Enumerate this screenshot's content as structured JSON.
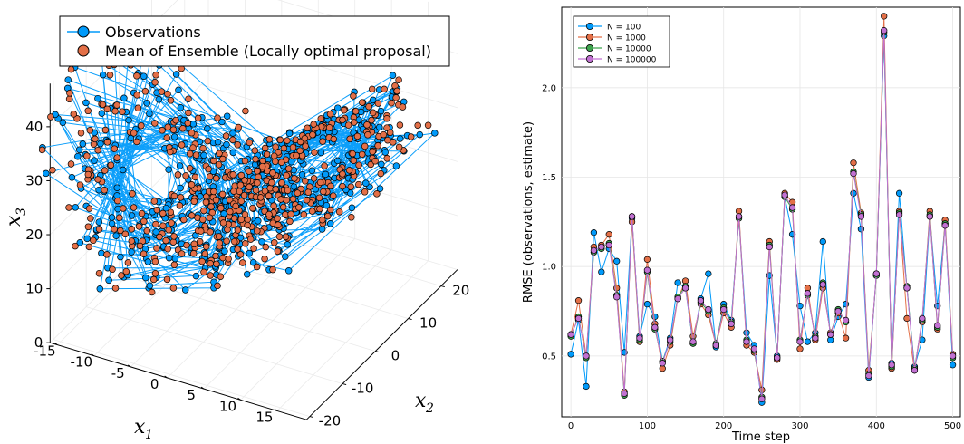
{
  "chart_data": [
    {
      "type": "scatter",
      "projection": "3d",
      "xlabel_main": "x",
      "xlabel_sub": "1",
      "ylabel_main": "x",
      "ylabel_sub": "2",
      "zlabel_main": "x",
      "zlabel_sub": "3",
      "x_ticks": [
        "-15",
        "-10",
        "-5",
        "0",
        "5",
        "10",
        "15"
      ],
      "y_ticks": [
        "20",
        "10",
        "0",
        "-10",
        "-20"
      ],
      "z_ticks": [
        "0",
        "10",
        "20",
        "30",
        "40"
      ],
      "xlim": [
        -17,
        19
      ],
      "ylim": [
        -24,
        27
      ],
      "zlim": [
        0,
        48
      ],
      "legend_position": "top-left",
      "series": [
        {
          "name": "Observations",
          "color": "#009AFA",
          "style": "line+markers"
        },
        {
          "name": "Mean of Ensemble (Locally optimal proposal)",
          "color": "#E36F47",
          "style": "markers"
        }
      ],
      "point_count_estimate": 500
    },
    {
      "type": "line",
      "xlabel": "Time step",
      "ylabel": "RMSE (observations, estimate)",
      "xlim": [
        -12,
        510
      ],
      "ylim": [
        0.16,
        2.45
      ],
      "x_ticks": [
        0,
        100,
        200,
        300,
        400,
        500
      ],
      "y_ticks": [
        0.5,
        1.0,
        1.5,
        2.0
      ],
      "y_tick_labels": [
        "0.5",
        "1.0",
        "1.5",
        "2.0"
      ],
      "grid": true,
      "legend_position": "top-left",
      "x": [
        0,
        10,
        20,
        30,
        40,
        50,
        60,
        70,
        80,
        90,
        100,
        110,
        120,
        130,
        140,
        150,
        160,
        170,
        180,
        190,
        200,
        210,
        220,
        230,
        240,
        250,
        260,
        270,
        280,
        290,
        300,
        310,
        320,
        330,
        340,
        350,
        360,
        370,
        380,
        390,
        400,
        410,
        420,
        430,
        440,
        450,
        460,
        470,
        480,
        490,
        500
      ],
      "series": [
        {
          "name": "N = 100",
          "color": "#009AFA",
          "values": [
            0.51,
            0.7,
            0.33,
            1.19,
            0.97,
            1.1,
            1.03,
            0.52,
            1.27,
            0.61,
            0.79,
            0.72,
            0.47,
            0.6,
            0.91,
            0.88,
            0.57,
            0.82,
            0.96,
            0.55,
            0.79,
            0.7,
            1.28,
            0.63,
            0.56,
            0.24,
            0.95,
            0.5,
            1.39,
            1.18,
            0.78,
            0.58,
            0.63,
            1.14,
            0.59,
            0.72,
            0.79,
            1.41,
            1.21,
            0.38,
            0.96,
            2.29,
            0.46,
            1.41,
            0.88,
            0.44,
            0.59,
            1.28,
            0.78,
            1.24,
            0.45
          ]
        },
        {
          "name": "N = 1000",
          "color": "#E36F47",
          "values": [
            0.62,
            0.81,
            0.5,
            1.11,
            1.12,
            1.18,
            0.88,
            0.3,
            1.25,
            0.58,
            1.04,
            0.68,
            0.43,
            0.56,
            0.82,
            0.92,
            0.61,
            0.79,
            0.73,
            0.56,
            0.74,
            0.66,
            1.31,
            0.56,
            0.52,
            0.31,
            1.14,
            0.48,
            1.41,
            1.36,
            0.54,
            0.88,
            0.59,
            0.88,
            0.63,
            0.74,
            0.6,
            1.58,
            1.3,
            0.42,
            0.95,
            2.4,
            0.43,
            1.31,
            0.71,
            0.42,
            0.69,
            1.31,
            0.65,
            1.26,
            0.51
          ]
        },
        {
          "name": "N = 10000",
          "color": "#3EA44E",
          "values": [
            0.61,
            0.72,
            0.49,
            1.08,
            1.1,
            1.13,
            0.84,
            0.28,
            1.28,
            0.59,
            0.97,
            0.65,
            0.47,
            0.58,
            0.83,
            0.89,
            0.57,
            0.8,
            0.75,
            0.57,
            0.77,
            0.69,
            1.27,
            0.59,
            0.53,
            0.27,
            1.12,
            0.49,
            1.39,
            1.32,
            0.59,
            0.84,
            0.61,
            0.91,
            0.62,
            0.76,
            0.69,
            1.53,
            1.29,
            0.4,
            0.95,
            2.31,
            0.44,
            1.3,
            0.89,
            0.43,
            0.7,
            1.29,
            0.66,
            1.24,
            0.49
          ]
        },
        {
          "name": "N = 100000",
          "color": "#C271D2",
          "values": [
            0.62,
            0.71,
            0.5,
            1.09,
            1.11,
            1.12,
            0.83,
            0.29,
            1.28,
            0.6,
            0.98,
            0.66,
            0.46,
            0.59,
            0.82,
            0.88,
            0.58,
            0.81,
            0.76,
            0.56,
            0.76,
            0.68,
            1.28,
            0.58,
            0.54,
            0.26,
            1.11,
            0.49,
            1.4,
            1.33,
            0.58,
            0.85,
            0.6,
            0.9,
            0.62,
            0.75,
            0.7,
            1.52,
            1.28,
            0.39,
            0.96,
            2.32,
            0.45,
            1.29,
            0.88,
            0.42,
            0.71,
            1.28,
            0.67,
            1.23,
            0.5
          ]
        }
      ]
    }
  ]
}
